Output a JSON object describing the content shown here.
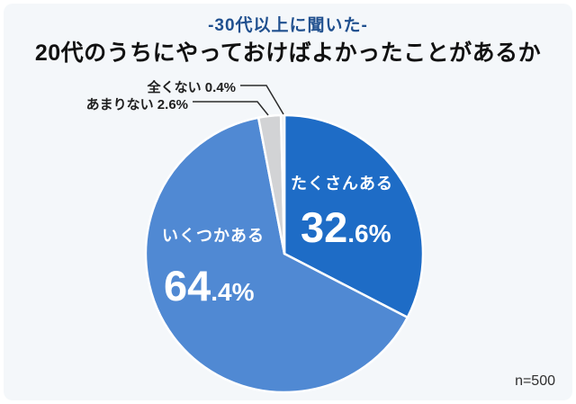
{
  "header": {
    "subtitle": "-30代以上に聞いた-",
    "title": "20代のうちにやっておけばよかったことがあるか"
  },
  "footnote": {
    "label": "n=500"
  },
  "colors": {
    "page_bg": "#ffffff",
    "card_bg": "#f4f7fa",
    "subtitle_text": "#20508f",
    "title_text": "#111111",
    "slice_stroke": "#ffffff",
    "leader_line": "#2b2b2b"
  },
  "chart_data": {
    "type": "pie",
    "title": "20代のうちにやっておけばよかったことがあるか",
    "subtitle": "-30代以上に聞いた-",
    "sample_size": "n=500",
    "start_angle_deg": 0,
    "direction": "clockwise",
    "categories": [
      "たくさんある",
      "いくつかある",
      "あまりない",
      "全くない"
    ],
    "values": [
      32.6,
      64.4,
      2.6,
      0.4
    ],
    "segments": [
      {
        "label": "たくさんある",
        "value": 32.6,
        "display_big": "32",
        "display_small": ".6%",
        "color": "#1e6cc6",
        "label_placement": "inside"
      },
      {
        "label": "いくつかある",
        "value": 64.4,
        "display_big": "64",
        "display_small": ".4%",
        "color": "#5089d3",
        "label_placement": "inside"
      },
      {
        "label": "あまりない",
        "value": 2.6,
        "color": "#d2d3d5",
        "label_placement": "callout",
        "callout_text": "あまりない 2.6%"
      },
      {
        "label": "全くない",
        "value": 0.4,
        "color": "#e9ebed",
        "label_placement": "callout",
        "callout_text": "全くない 0.4%"
      }
    ]
  }
}
